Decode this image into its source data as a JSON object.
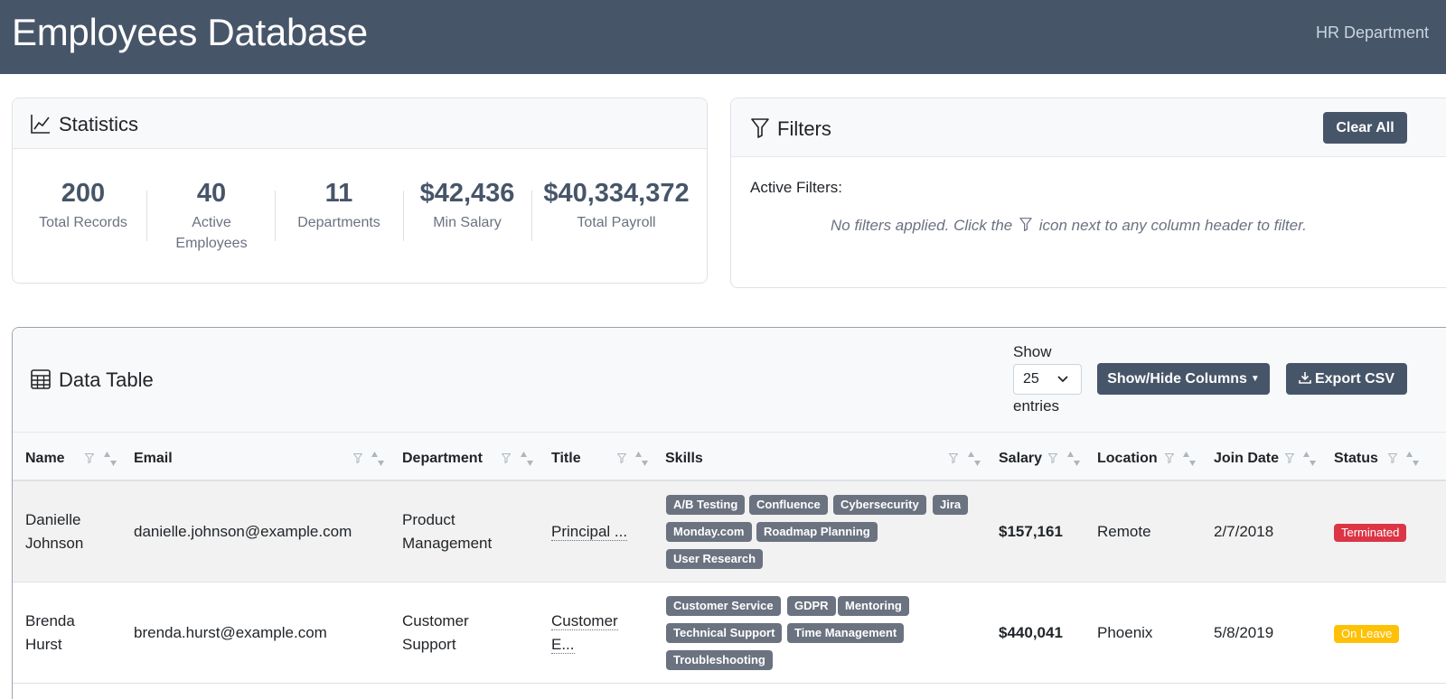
{
  "header": {
    "title": "Employees Database",
    "department": "HR Department"
  },
  "statistics": {
    "title": "Statistics",
    "items": [
      {
        "value": "200",
        "label": "Total Records"
      },
      {
        "value": "40",
        "label": "Active Employees"
      },
      {
        "value": "11",
        "label": "Departments"
      },
      {
        "value": "$42,436",
        "label": "Min Salary"
      },
      {
        "value": "$40,334,372",
        "label": "Total Payroll"
      }
    ]
  },
  "filters": {
    "title": "Filters",
    "clear_label": "Clear All",
    "active_label": "Active Filters:",
    "empty_before": "No filters applied. Click the",
    "empty_after": "icon next to any column header to filter."
  },
  "table": {
    "title": "Data Table",
    "show_label": "Show",
    "entries_value": "25",
    "entries_label": "entries",
    "columns_button": "Show/Hide Columns",
    "export_button": "Export CSV",
    "columns": [
      "Name",
      "Email",
      "Department",
      "Title",
      "Skills",
      "Salary",
      "Location",
      "Join Date",
      "Status"
    ],
    "rows": [
      {
        "name_first": "Danielle",
        "name_last": "Johnson",
        "email": "danielle.johnson@example.com",
        "dept_line1": "Product",
        "dept_line2": "Management",
        "title_line1": "Principal ...",
        "title_line2": "",
        "skills": [
          "A/B Testing",
          "Confluence",
          "Cybersecurity",
          "Jira",
          "Monday.com",
          "Roadmap Planning",
          "User Research"
        ],
        "salary": "$157,161",
        "location": "Remote",
        "join_date": "2/7/2018",
        "status": "Terminated",
        "status_color": "#dc3545"
      },
      {
        "name_first": "Brenda",
        "name_last": "Hurst",
        "email": "brenda.hurst@example.com",
        "dept_line1": "Customer",
        "dept_line2": "Support",
        "title_line1": "Customer",
        "title_line2": "E...",
        "skills": [
          "Customer Service",
          "GDPR",
          "Mentoring",
          "Technical Support",
          "Time Management",
          "Troubleshooting"
        ],
        "salary": "$440,041",
        "location": "Phoenix",
        "join_date": "5/8/2019",
        "status": "On Leave",
        "status_color": "#ffc107"
      }
    ]
  }
}
